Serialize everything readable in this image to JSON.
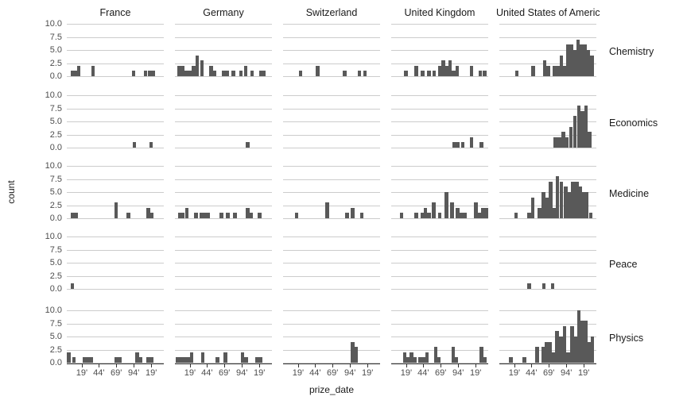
{
  "figure": {
    "background": "#ffffff"
  },
  "chart_data": {
    "type": "bar",
    "kind": "faceted-histogram-grid",
    "title": "",
    "xlabel": "prize_date",
    "ylabel": "count",
    "col_facets": [
      "France",
      "Germany",
      "Switzerland",
      "United Kingdom",
      "United States of America"
    ],
    "row_facets": [
      "Chemistry",
      "Economics",
      "Medicine",
      "Peace",
      "Physics"
    ],
    "ylim": [
      0,
      10
    ],
    "y_tick_labels": [
      "0.0",
      "2.5",
      "5.0",
      "7.5",
      "10.0"
    ],
    "x_tick_labels": [
      "19'",
      "44'",
      "69'",
      "94'",
      "19'"
    ],
    "x_tick_positions": [
      0.155,
      0.33,
      0.51,
      0.69,
      0.87
    ],
    "grid": "horizontal-only",
    "legend": "none",
    "bar_color": "#595959",
    "grid_color": "#cccccc",
    "axis_color": "#333333",
    "tick_text_color": "#4d4d4d",
    "strip_text_color": "#1a1a1a",
    "facets": [
      {
        "row": "Chemistry",
        "bars": {
          "France": [
            [
              0.04,
              1
            ],
            [
              0.075,
              1
            ],
            [
              0.105,
              2
            ],
            [
              0.25,
              2
            ],
            [
              0.67,
              1
            ],
            [
              0.795,
              1
            ],
            [
              0.84,
              1
            ],
            [
              0.875,
              1
            ]
          ],
          "Germany": [
            [
              0.025,
              2
            ],
            [
              0.06,
              2
            ],
            [
              0.1,
              1
            ],
            [
              0.135,
              1
            ],
            [
              0.175,
              2
            ],
            [
              0.21,
              4
            ],
            [
              0.26,
              3
            ],
            [
              0.355,
              2
            ],
            [
              0.39,
              1
            ],
            [
              0.485,
              1
            ],
            [
              0.52,
              1
            ],
            [
              0.585,
              1
            ],
            [
              0.66,
              1
            ],
            [
              0.71,
              2
            ],
            [
              0.775,
              1
            ],
            [
              0.865,
              1
            ],
            [
              0.9,
              1
            ]
          ],
          "Switzerland": [
            [
              0.16,
              1
            ],
            [
              0.34,
              2
            ],
            [
              0.615,
              1
            ],
            [
              0.77,
              1
            ],
            [
              0.825,
              1
            ]
          ],
          "United Kingdom": [
            [
              0.135,
              1
            ],
            [
              0.24,
              2
            ],
            [
              0.305,
              1
            ],
            [
              0.37,
              1
            ],
            [
              0.425,
              1
            ],
            [
              0.485,
              2
            ],
            [
              0.52,
              3
            ],
            [
              0.555,
              2
            ],
            [
              0.59,
              3
            ],
            [
              0.625,
              1
            ],
            [
              0.66,
              2
            ],
            [
              0.81,
              2
            ],
            [
              0.9,
              1
            ],
            [
              0.945,
              1
            ]
          ],
          "United States of America": [
            [
              0.16,
              1
            ],
            [
              0.33,
              2
            ],
            [
              0.45,
              3
            ],
            [
              0.485,
              2
            ],
            [
              0.55,
              2
            ],
            [
              0.585,
              2
            ],
            [
              0.62,
              4
            ],
            [
              0.655,
              2
            ],
            [
              0.69,
              6
            ],
            [
              0.725,
              6
            ],
            [
              0.76,
              5
            ],
            [
              0.795,
              7
            ],
            [
              0.83,
              6
            ],
            [
              0.865,
              6
            ],
            [
              0.9,
              5
            ],
            [
              0.935,
              4
            ]
          ]
        }
      },
      {
        "row": "Economics",
        "bars": {
          "France": [
            [
              0.68,
              1
            ],
            [
              0.85,
              1
            ]
          ],
          "Germany": [
            [
              0.73,
              1
            ]
          ],
          "Switzerland": [],
          "United Kingdom": [
            [
              0.63,
              1
            ],
            [
              0.665,
              1
            ],
            [
              0.72,
              1
            ],
            [
              0.81,
              2
            ],
            [
              0.91,
              1
            ]
          ],
          "United States of America": [
            [
              0.56,
              2
            ],
            [
              0.6,
              2
            ],
            [
              0.64,
              3
            ],
            [
              0.68,
              2
            ],
            [
              0.72,
              4
            ],
            [
              0.76,
              6
            ],
            [
              0.8,
              8
            ],
            [
              0.84,
              7
            ],
            [
              0.875,
              8
            ],
            [
              0.91,
              3
            ]
          ]
        }
      },
      {
        "row": "Medicine",
        "bars": {
          "France": [
            [
              0.04,
              1
            ],
            [
              0.075,
              1
            ],
            [
              0.49,
              3
            ],
            [
              0.615,
              1
            ],
            [
              0.82,
              2
            ],
            [
              0.855,
              1
            ]
          ],
          "Germany": [
            [
              0.03,
              1
            ],
            [
              0.065,
              1
            ],
            [
              0.105,
              2
            ],
            [
              0.2,
              1
            ],
            [
              0.25,
              1
            ],
            [
              0.285,
              1
            ],
            [
              0.32,
              1
            ],
            [
              0.46,
              1
            ],
            [
              0.525,
              1
            ],
            [
              0.6,
              1
            ],
            [
              0.73,
              2
            ],
            [
              0.765,
              1
            ],
            [
              0.855,
              1
            ]
          ],
          "Switzerland": [
            [
              0.12,
              1
            ],
            [
              0.435,
              3
            ],
            [
              0.64,
              1
            ],
            [
              0.7,
              2
            ],
            [
              0.795,
              1
            ]
          ],
          "United Kingdom": [
            [
              0.09,
              1
            ],
            [
              0.24,
              1
            ],
            [
              0.3,
              1
            ],
            [
              0.335,
              2
            ],
            [
              0.37,
              1
            ],
            [
              0.42,
              3
            ],
            [
              0.48,
              1
            ],
            [
              0.55,
              5
            ],
            [
              0.61,
              3
            ],
            [
              0.665,
              2
            ],
            [
              0.705,
              1
            ],
            [
              0.74,
              1
            ],
            [
              0.855,
              3
            ],
            [
              0.89,
              1
            ],
            [
              0.925,
              2
            ],
            [
              0.96,
              2
            ]
          ],
          "United States of America": [
            [
              0.155,
              1
            ],
            [
              0.29,
              1
            ],
            [
              0.325,
              4
            ],
            [
              0.395,
              2
            ],
            [
              0.435,
              5
            ],
            [
              0.47,
              4
            ],
            [
              0.51,
              7
            ],
            [
              0.545,
              2
            ],
            [
              0.58,
              8
            ],
            [
              0.62,
              7
            ],
            [
              0.665,
              6
            ],
            [
              0.7,
              5
            ],
            [
              0.74,
              7
            ],
            [
              0.78,
              7
            ],
            [
              0.815,
              6
            ],
            [
              0.85,
              5
            ],
            [
              0.885,
              5
            ],
            [
              0.925,
              1
            ]
          ]
        }
      },
      {
        "row": "Peace",
        "bars": {
          "France": [
            [
              0.04,
              1
            ]
          ],
          "Germany": [],
          "Switzerland": [],
          "United Kingdom": [],
          "United States of America": [
            [
              0.29,
              1
            ],
            [
              0.44,
              1
            ],
            [
              0.53,
              1
            ]
          ]
        }
      },
      {
        "row": "Physics",
        "bars": {
          "France": [
            [
              0.0,
              2
            ],
            [
              0.055,
              1
            ],
            [
              0.16,
              1
            ],
            [
              0.195,
              1
            ],
            [
              0.23,
              1
            ],
            [
              0.49,
              1
            ],
            [
              0.525,
              1
            ],
            [
              0.705,
              2
            ],
            [
              0.74,
              1
            ],
            [
              0.82,
              1
            ],
            [
              0.855,
              1
            ]
          ],
          "Germany": [
            [
              0.01,
              1
            ],
            [
              0.045,
              1
            ],
            [
              0.08,
              1
            ],
            [
              0.115,
              1
            ],
            [
              0.155,
              2
            ],
            [
              0.27,
              2
            ],
            [
              0.42,
              1
            ],
            [
              0.5,
              2
            ],
            [
              0.68,
              2
            ],
            [
              0.715,
              1
            ],
            [
              0.83,
              1
            ],
            [
              0.865,
              1
            ]
          ],
          "Switzerland": [
            [
              0.7,
              4
            ],
            [
              0.735,
              3
            ]
          ],
          "United Kingdom": [
            [
              0.12,
              2
            ],
            [
              0.155,
              1
            ],
            [
              0.19,
              2
            ],
            [
              0.225,
              1
            ],
            [
              0.28,
              1
            ],
            [
              0.315,
              1
            ],
            [
              0.35,
              2
            ],
            [
              0.44,
              3
            ],
            [
              0.475,
              1
            ],
            [
              0.62,
              3
            ],
            [
              0.655,
              1
            ],
            [
              0.91,
              3
            ],
            [
              0.945,
              1
            ]
          ],
          "United States of America": [
            [
              0.1,
              1
            ],
            [
              0.24,
              1
            ],
            [
              0.37,
              3
            ],
            [
              0.435,
              3
            ],
            [
              0.47,
              4
            ],
            [
              0.505,
              4
            ],
            [
              0.54,
              2
            ],
            [
              0.575,
              6
            ],
            [
              0.615,
              5
            ],
            [
              0.655,
              7
            ],
            [
              0.69,
              2
            ],
            [
              0.73,
              7
            ],
            [
              0.765,
              5
            ],
            [
              0.8,
              10
            ],
            [
              0.835,
              8
            ],
            [
              0.87,
              8
            ],
            [
              0.905,
              4
            ],
            [
              0.94,
              5
            ]
          ]
        }
      }
    ]
  }
}
